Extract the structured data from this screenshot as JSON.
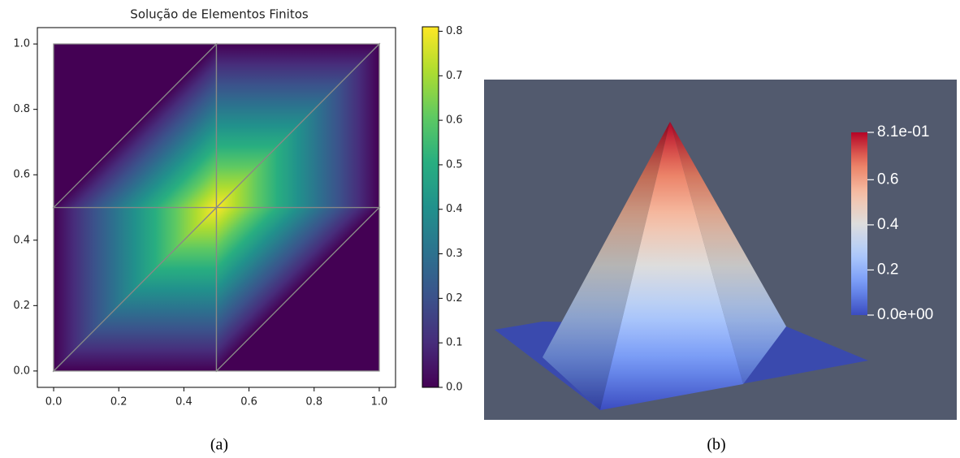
{
  "chart_data": [
    {
      "type": "trimesh",
      "title": "Solução de Elementos Finitos",
      "caption": "(a)",
      "x": [
        0,
        0.5,
        1,
        0,
        0.5,
        1,
        0,
        0.5,
        1
      ],
      "y": [
        0,
        0,
        0,
        0.5,
        0.5,
        0.5,
        1,
        1,
        1
      ],
      "values": [
        0,
        0,
        0,
        0,
        0.81,
        0,
        0,
        0,
        0
      ],
      "triangles": [
        [
          0,
          1,
          4
        ],
        [
          0,
          4,
          3
        ],
        [
          1,
          2,
          5
        ],
        [
          1,
          5,
          4
        ],
        [
          3,
          4,
          7
        ],
        [
          3,
          7,
          6
        ],
        [
          4,
          5,
          8
        ],
        [
          4,
          8,
          7
        ]
      ],
      "colormap": [
        "#440154",
        "#472d7b",
        "#3b528b",
        "#2c728e",
        "#21918c",
        "#28ae80",
        "#5ec962",
        "#addc30",
        "#fde725"
      ],
      "edge_color": "#888888",
      "xlim": [
        -0.05,
        1.05
      ],
      "ylim": [
        -0.05,
        1.05
      ],
      "xticks": [
        {
          "value": 0,
          "label": "0.0"
        },
        0.2,
        0.4,
        0.6,
        0.8,
        {
          "value": 1,
          "label": "1.0"
        }
      ],
      "yticks": [
        {
          "value": 0,
          "label": "0.0"
        },
        0.2,
        0.4,
        0.6,
        0.8,
        {
          "value": 1,
          "label": "1.0"
        }
      ],
      "clim": [
        0,
        0.81
      ],
      "cticks": [
        {
          "value": 0,
          "label": "0.0"
        },
        0.1,
        0.2,
        0.3,
        0.4,
        0.5,
        0.6,
        0.7,
        0.8
      ]
    },
    {
      "type": "surface3d",
      "caption": "(b)",
      "background": "#525a6e",
      "colormap": [
        "#3b4cc0",
        "#7396f5",
        "#b0cbfc",
        "#dddddd",
        "#f6bfa6",
        "#ea7b60",
        "#b40426"
      ],
      "clim": [
        0,
        0.81
      ],
      "cticks": [
        {
          "value": 0.81,
          "label": "8.1e-01"
        },
        0.6,
        0.4,
        0.2,
        {
          "value": 0,
          "label": "0.0e+00"
        }
      ]
    }
  ]
}
